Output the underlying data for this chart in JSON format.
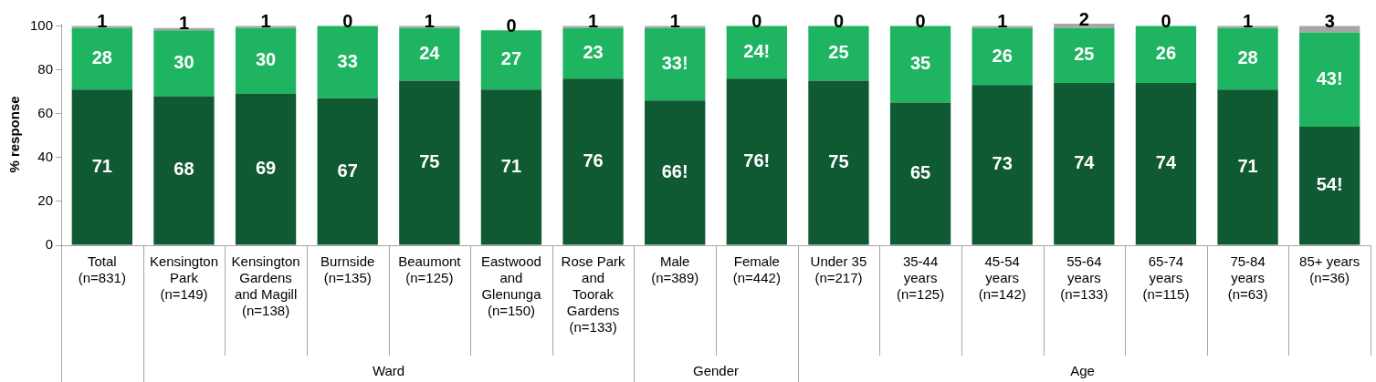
{
  "chart_data": {
    "type": "bar",
    "stacked": true,
    "ylabel": "% response",
    "categories": [
      "Total\n(n=831)",
      "Kensington\nPark\n(n=149)",
      "Kensington\nGardens\nand Magill\n(n=138)",
      "Burnside\n(n=135)",
      "Beaumont\n(n=125)",
      "Eastwood\nand\nGlenunga\n(n=150)",
      "Rose Park\nand\nToorak\nGardens\n(n=133)",
      "Male\n(n=389)",
      "Female\n(n=442)",
      "Under 35\n(n=217)",
      "35-44\nyears\n(n=125)",
      "45-54\nyears\n(n=142)",
      "55-64\nyears\n(n=133)",
      "65-74\nyears\n(n=115)",
      "75-84\nyears\n(n=63)",
      "85+ years\n(n=36)"
    ],
    "series": [
      {
        "color": "#0f5a32",
        "values": [
          71,
          68,
          69,
          67,
          75,
          71,
          76,
          66,
          76,
          75,
          65,
          73,
          74,
          74,
          71,
          54
        ],
        "value_labels": [
          "71",
          "68",
          "69",
          "67",
          "75",
          "71",
          "76",
          "66!",
          "76!",
          "75",
          "65",
          "73",
          "74",
          "74",
          "71",
          "54!"
        ]
      },
      {
        "color": "#1fb462",
        "values": [
          28,
          30,
          30,
          33,
          24,
          27,
          23,
          33,
          24,
          25,
          35,
          26,
          25,
          26,
          28,
          43
        ],
        "value_labels": [
          "28",
          "30",
          "30",
          "33",
          "24",
          "27",
          "23",
          "33!",
          "24!",
          "25",
          "35",
          "26",
          "25",
          "26",
          "28",
          "43!"
        ]
      },
      {
        "color": "#a6a6a6",
        "values": [
          1,
          1,
          1,
          0,
          1,
          0,
          1,
          1,
          0,
          0,
          0,
          1,
          2,
          0,
          1,
          3
        ],
        "value_labels": [
          "1",
          "1",
          "1",
          "0",
          "1",
          "0",
          "1",
          "1",
          "0",
          "0",
          "0",
          "1",
          "2",
          "0",
          "1",
          "3"
        ]
      }
    ],
    "ylim": [
      0,
      101
    ],
    "yticks": [
      0,
      20,
      40,
      60,
      80,
      100
    ],
    "grid": false,
    "legend": false,
    "annotations": [
      "Ward",
      "Gender",
      "Age"
    ]
  }
}
